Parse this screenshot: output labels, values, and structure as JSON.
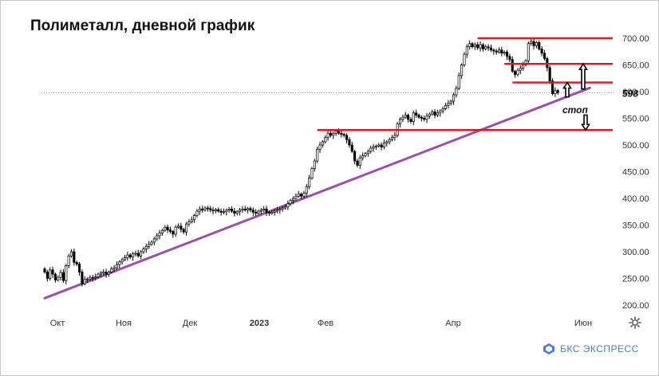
{
  "title": "Полиметалл, дневной график",
  "brand": {
    "name": "БКС ЭКСПРЕСС",
    "color": "#4a7bd0",
    "icon": "bks-logo-icon"
  },
  "settings_icon": "gear-icon",
  "chart_data": {
    "type": "candlestick",
    "title": "Полиметалл, дневной график",
    "x_tick_labels": [
      "Окт",
      "Ноя",
      "Дек",
      "2023",
      "Фев",
      "Апр",
      "Июн"
    ],
    "y_tick_labels": [
      "200.00",
      "250.00",
      "300.00",
      "350.00",
      "400.00",
      "450.00",
      "500.00",
      "550.00",
      "600.00",
      "650.00",
      "700.00"
    ],
    "ylim": [
      190,
      715
    ],
    "grid": false,
    "current_price": {
      "label": "598",
      "value": 598
    },
    "colors": {
      "up": "#ffffff",
      "down": "#000000",
      "levels": "#e0181e",
      "trendline": "#9b4fa8"
    },
    "closes": [
      262,
      250,
      266,
      258,
      247,
      252,
      261,
      246,
      274,
      292,
      300,
      280,
      277,
      262,
      240,
      248,
      249,
      252,
      251,
      253,
      258,
      260,
      262,
      258,
      262,
      268,
      270,
      276,
      281,
      285,
      289,
      294,
      290,
      296,
      297,
      292,
      300,
      305,
      310,
      314,
      318,
      324,
      330,
      335,
      340,
      346,
      341,
      338,
      333,
      346,
      348,
      342,
      337,
      352,
      356,
      360,
      368,
      376,
      380,
      378,
      382,
      381,
      378,
      377,
      379,
      376,
      374,
      375,
      378,
      380,
      376,
      372,
      375,
      378,
      380,
      378,
      381,
      378,
      374,
      372,
      376,
      378,
      380,
      374,
      372,
      374,
      376,
      378,
      380,
      382,
      384,
      390,
      396,
      400,
      404,
      408,
      404,
      410,
      422,
      438,
      456,
      470,
      492,
      500,
      506,
      514,
      522,
      518,
      522,
      526,
      522,
      520,
      518,
      510,
      500,
      488,
      470,
      462,
      476,
      480,
      484,
      488,
      494,
      496,
      498,
      500,
      496,
      504,
      506,
      510,
      514,
      518,
      540,
      548,
      552,
      556,
      548,
      544,
      560,
      556,
      552,
      550,
      548,
      554,
      558,
      562,
      556,
      560,
      564,
      568,
      574,
      578,
      582,
      594,
      606,
      630,
      650,
      670,
      684,
      690,
      684,
      688,
      682,
      688,
      680,
      684,
      682,
      678,
      676,
      674,
      678,
      672,
      674,
      666,
      660,
      638,
      632,
      640,
      644,
      650,
      658,
      690,
      694,
      686,
      692,
      680,
      672,
      662,
      645,
      620,
      596,
      602,
      598
    ],
    "levels": [
      {
        "value": 700,
        "from_index": 162
      },
      {
        "value": 652,
        "from_index": 172
      },
      {
        "value": 617,
        "from_index": 175
      },
      {
        "value": 528,
        "from_index": 102
      }
    ],
    "trendline": {
      "from": {
        "index": 0,
        "value": 213
      },
      "to": {
        "index": 204,
        "value": 607
      }
    },
    "annotations": [
      {
        "text": "стоп",
        "style": "bold-italic"
      }
    ],
    "arrows": [
      {
        "direction": "up",
        "from_value": 590,
        "to_value": 617
      },
      {
        "direction": "up",
        "from_value": 605,
        "to_value": 652
      },
      {
        "direction": "down",
        "from_value": 556,
        "to_value": 528
      }
    ]
  }
}
